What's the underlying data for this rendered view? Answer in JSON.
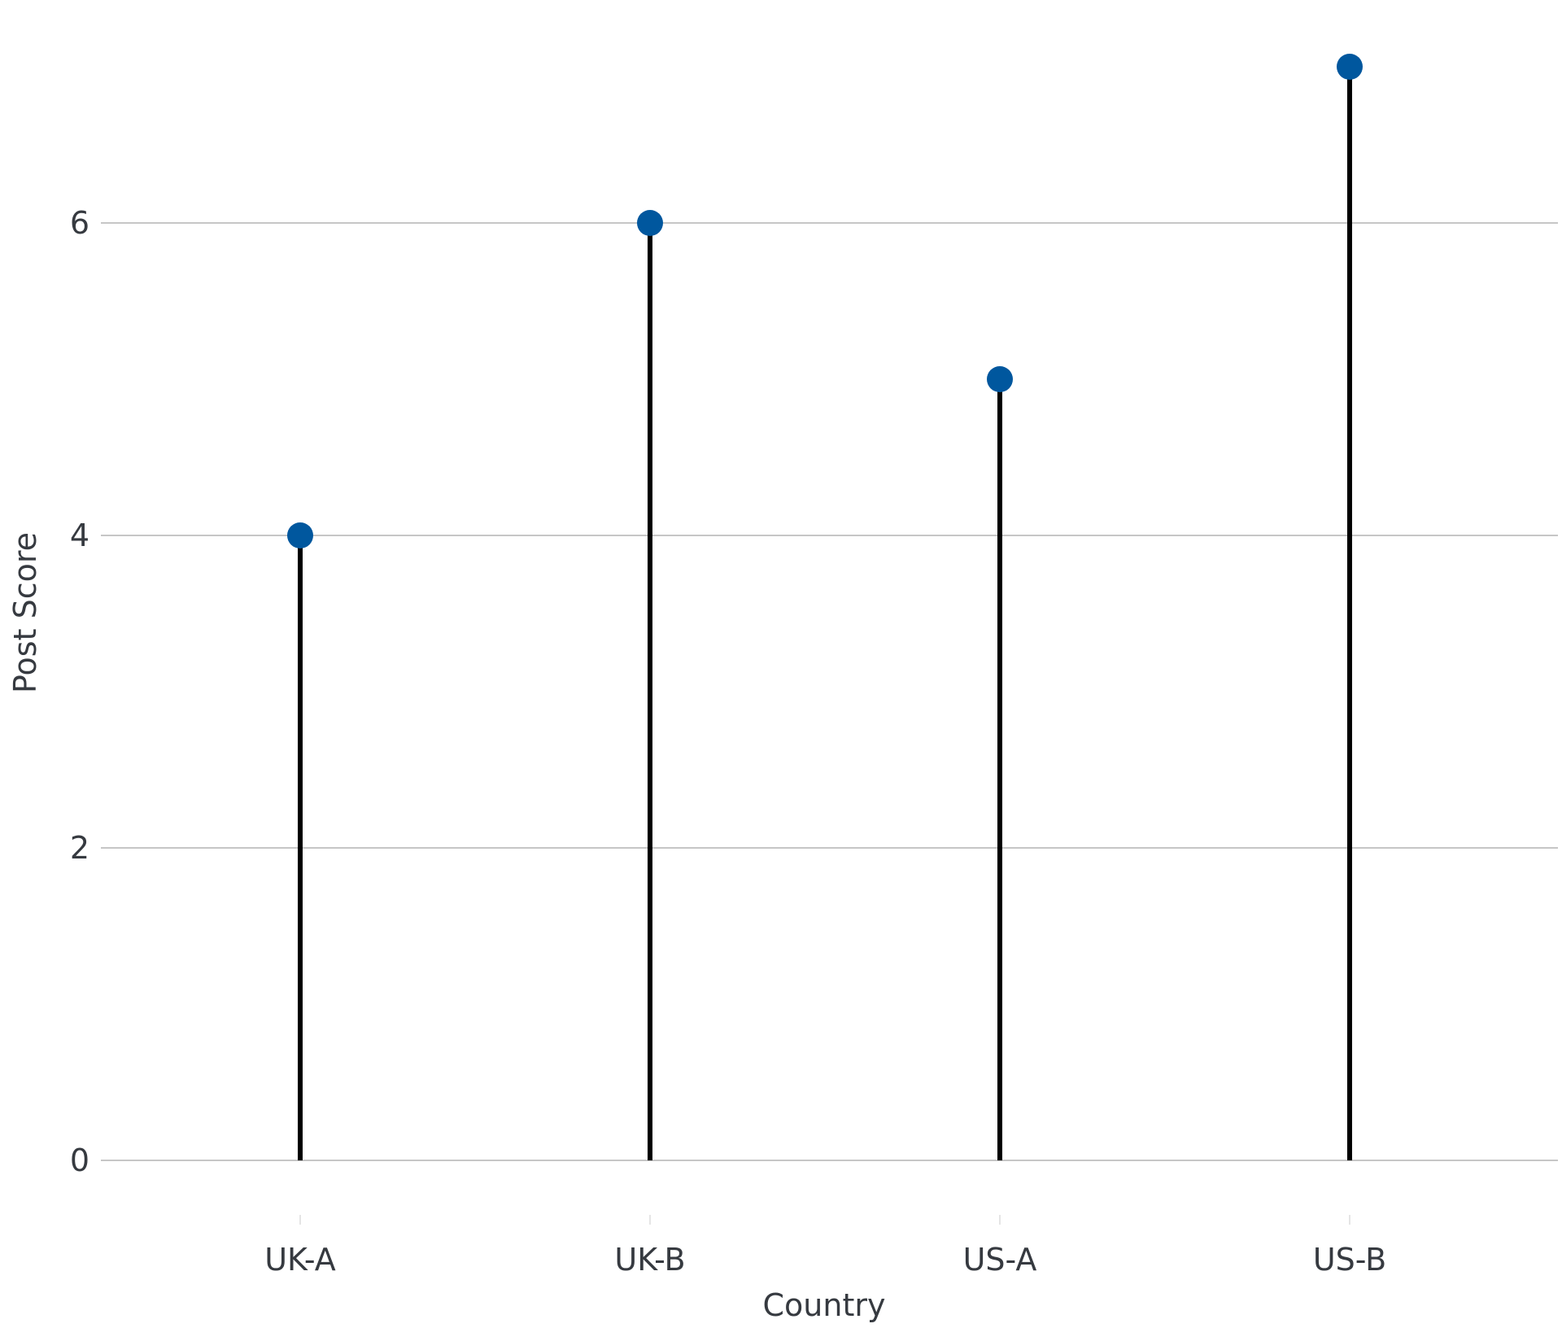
{
  "chart_data": {
    "type": "lollipop",
    "categories": [
      "UK-A",
      "UK-B",
      "US-A",
      "US-B"
    ],
    "values": [
      4,
      6,
      5,
      7
    ],
    "xlabel": "Country",
    "ylabel": "Post Score",
    "ylim": [
      -0.3,
      7.4
    ],
    "yticks": [
      0,
      2,
      4,
      6
    ],
    "grid": "horizontal",
    "colors": {
      "marker": "#00579e",
      "stem": "#000000",
      "grid": "#b4b4b4",
      "text": "#363a40"
    }
  }
}
